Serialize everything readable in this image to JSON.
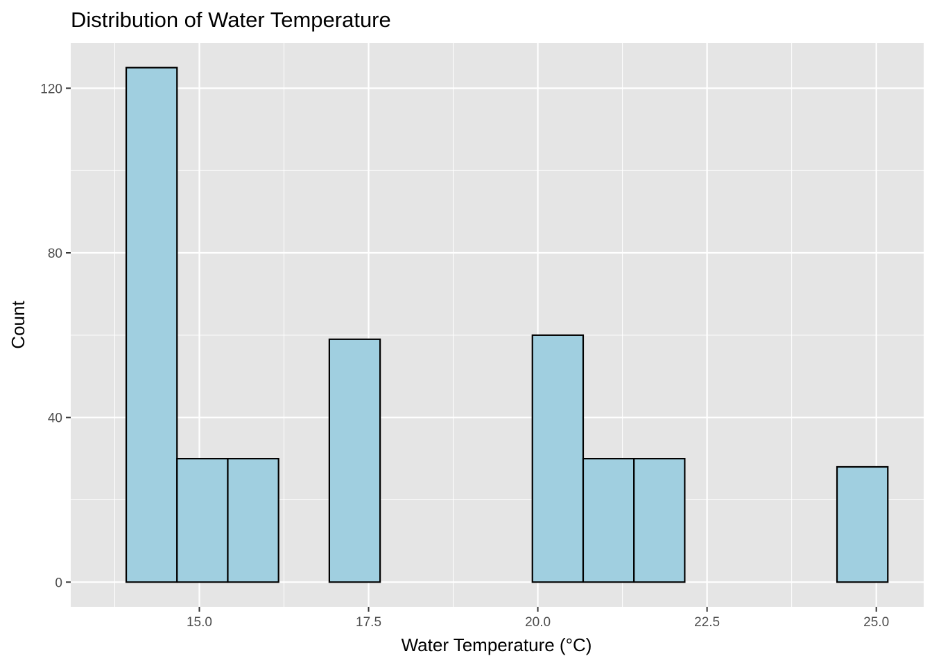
{
  "chart_data": {
    "type": "bar",
    "title": "Distribution of Water Temperature",
    "xlabel": "Water Temperature (°C)",
    "ylabel": "Count",
    "bins": [
      {
        "x0": 13.92,
        "x1": 14.67,
        "count": 125
      },
      {
        "x0": 14.67,
        "x1": 15.42,
        "count": 30
      },
      {
        "x0": 15.42,
        "x1": 16.17,
        "count": 30
      },
      {
        "x0": 16.17,
        "x1": 16.92,
        "count": 0
      },
      {
        "x0": 16.92,
        "x1": 17.67,
        "count": 59
      },
      {
        "x0": 17.67,
        "x1": 18.42,
        "count": 0
      },
      {
        "x0": 18.42,
        "x1": 19.17,
        "count": 0
      },
      {
        "x0": 19.17,
        "x1": 19.92,
        "count": 0
      },
      {
        "x0": 19.92,
        "x1": 20.67,
        "count": 60
      },
      {
        "x0": 20.67,
        "x1": 21.42,
        "count": 30
      },
      {
        "x0": 21.42,
        "x1": 22.17,
        "count": 30
      },
      {
        "x0": 22.17,
        "x1": 22.92,
        "count": 0
      },
      {
        "x0": 22.92,
        "x1": 23.67,
        "count": 0
      },
      {
        "x0": 23.67,
        "x1": 24.42,
        "count": 0
      },
      {
        "x0": 24.42,
        "x1": 25.17,
        "count": 28
      }
    ],
    "xlim": [
      13.1,
      25.7
    ],
    "ylim": [
      -6,
      131
    ],
    "xticks": [
      15.0,
      17.5,
      20.0,
      22.5,
      25.0
    ],
    "xtick_labels": [
      "15.0",
      "17.5",
      "20.0",
      "22.5",
      "25.0"
    ],
    "yticks": [
      0,
      40,
      80,
      120
    ],
    "ytick_labels": [
      "0",
      "40",
      "80",
      "120"
    ],
    "grid": true,
    "colors": {
      "panel_background": "#e5e5e5",
      "grid": "#ffffff",
      "bar_fill": "#a0cfe0",
      "bar_stroke": "#000000"
    }
  }
}
